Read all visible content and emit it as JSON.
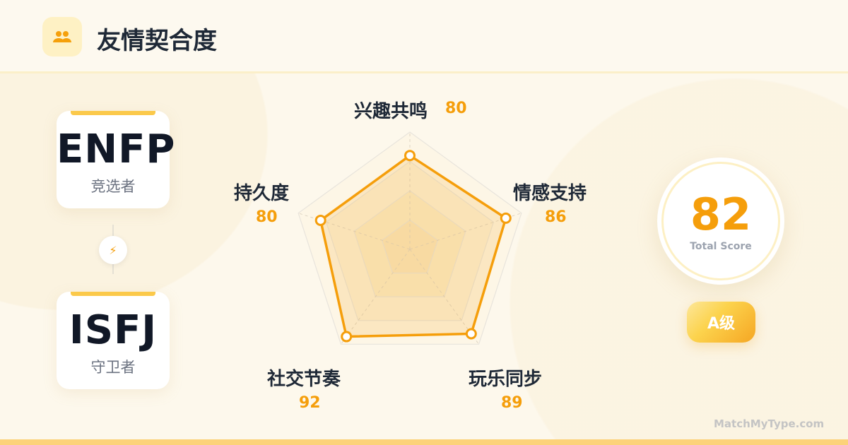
{
  "header": {
    "title": "友情契合度",
    "icon": "people-icon"
  },
  "types": [
    {
      "code": "ENFP",
      "name": "竞选者"
    },
    {
      "code": "ISFJ",
      "name": "守卫者"
    }
  ],
  "connector_icon": "lightning-icon",
  "chart_data": {
    "type": "radar",
    "axes": [
      "兴趣共鸣",
      "情感支持",
      "玩乐同步",
      "社交节奏",
      "持久度"
    ],
    "values": [
      80,
      86,
      89,
      92,
      80
    ],
    "range": [
      0,
      100
    ],
    "rings": 4,
    "color": "#f59e0b"
  },
  "score": {
    "value": "82",
    "label": "Total Score",
    "grade": "A级"
  },
  "brand": "MatchMyType.com",
  "colors": {
    "accent": "#f59e0b",
    "background": "#fdf8ec"
  }
}
